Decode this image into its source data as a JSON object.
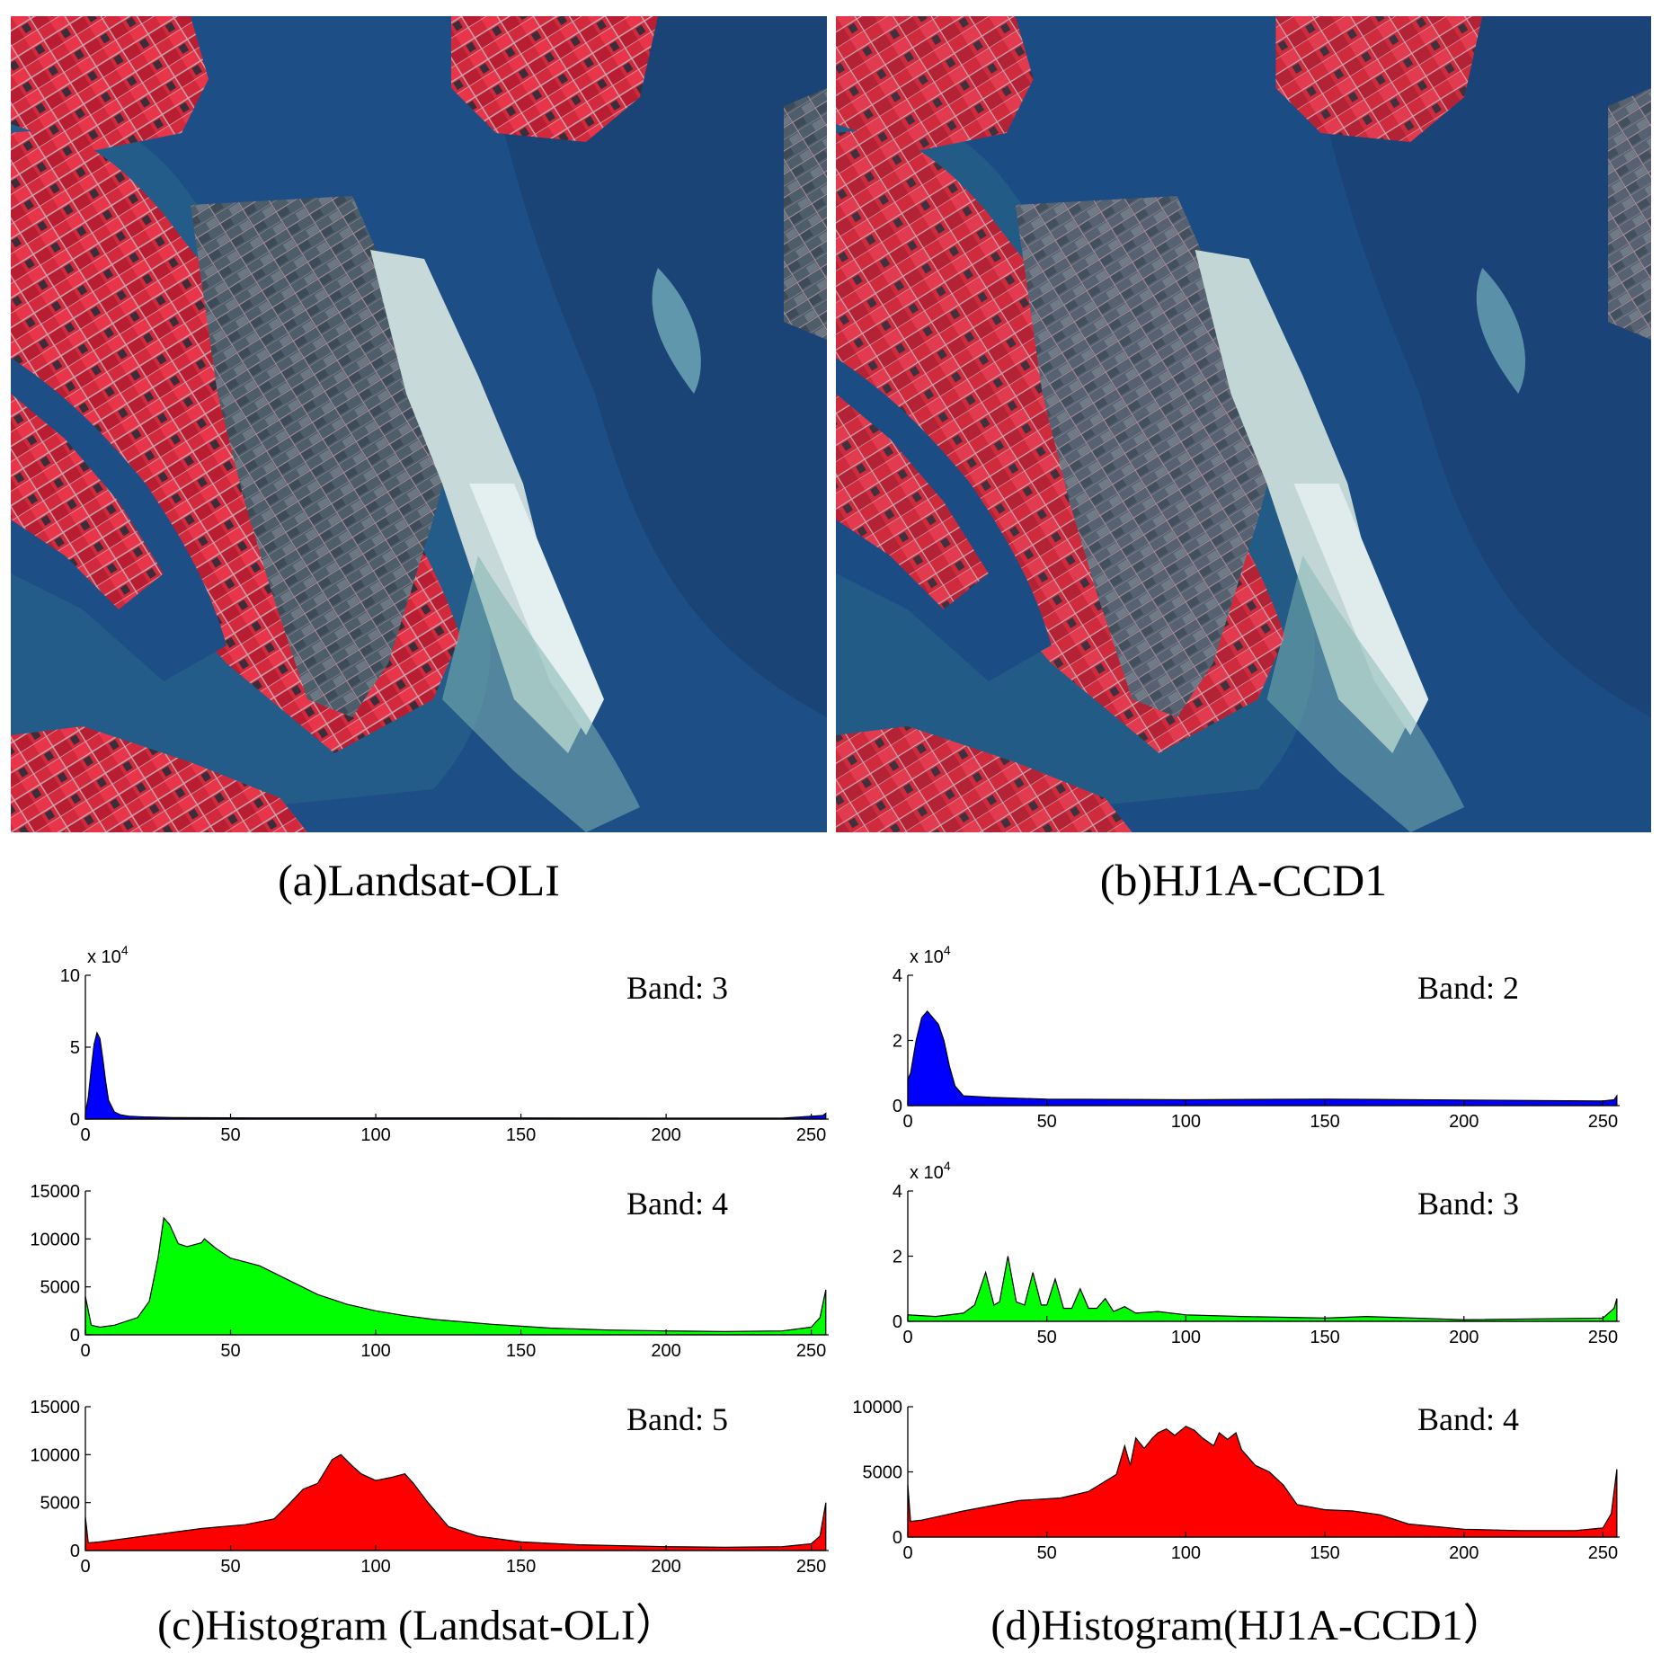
{
  "colors": {
    "band_blue": "#0000ff",
    "band_green": "#00ff00",
    "band_red": "#ff0000",
    "water": "#1d4f86",
    "land": "#d9283b"
  },
  "images": {
    "left_caption": "(a)Landsat-OLI",
    "right_caption": "(b)HJ1A-CCD1"
  },
  "histogram_captions": {
    "left": "(c)Histogram (Landsat-OLI）",
    "right": "(d)Histogram(HJ1A-CCD1）"
  },
  "chart_data": [
    {
      "type": "area",
      "panel": "c",
      "row": 0,
      "band_label": "Band: 3",
      "scale_label": "x 10",
      "scale_exp": "4",
      "color": "#0000ff",
      "xlim": [
        0,
        256
      ],
      "ylim": [
        0,
        10
      ],
      "xticks": [
        0,
        50,
        100,
        150,
        200,
        250
      ],
      "yticks": [
        0,
        5,
        10
      ],
      "x": [
        0,
        1,
        2,
        3,
        4,
        5,
        6,
        7,
        8,
        10,
        12,
        15,
        20,
        30,
        60,
        100,
        150,
        200,
        240,
        254,
        255
      ],
      "y": [
        0.4,
        1.5,
        3.5,
        5.2,
        6.0,
        5.6,
        4.2,
        2.6,
        1.3,
        0.5,
        0.3,
        0.2,
        0.15,
        0.1,
        0.08,
        0.08,
        0.08,
        0.06,
        0.06,
        0.25,
        0.4
      ]
    },
    {
      "type": "area",
      "panel": "c",
      "row": 1,
      "band_label": "Band: 4",
      "scale_label": "",
      "scale_exp": "",
      "color": "#00ff00",
      "xlim": [
        0,
        256
      ],
      "ylim": [
        0,
        15000
      ],
      "xticks": [
        0,
        50,
        100,
        150,
        200,
        250
      ],
      "yticks": [
        0,
        5000,
        10000,
        15000
      ],
      "x": [
        0,
        2,
        5,
        10,
        18,
        22,
        25,
        27,
        29,
        32,
        35,
        40,
        41,
        45,
        50,
        55,
        60,
        70,
        80,
        90,
        100,
        110,
        120,
        140,
        150,
        160,
        180,
        200,
        220,
        240,
        250,
        253,
        255
      ],
      "y": [
        4000,
        1000,
        800,
        1000,
        1800,
        3500,
        8000,
        12200,
        11500,
        9500,
        9200,
        9600,
        10000,
        9000,
        8000,
        7600,
        7200,
        5700,
        4200,
        3200,
        2500,
        2000,
        1600,
        1100,
        900,
        700,
        500,
        400,
        350,
        400,
        800,
        1800,
        4700
      ]
    },
    {
      "type": "area",
      "panel": "c",
      "row": 2,
      "band_label": "Band: 5",
      "scale_label": "",
      "scale_exp": "",
      "color": "#ff0000",
      "xlim": [
        0,
        256
      ],
      "ylim": [
        0,
        15000
      ],
      "xticks": [
        0,
        50,
        100,
        150,
        200,
        250
      ],
      "yticks": [
        0,
        5000,
        10000,
        15000
      ],
      "x": [
        0,
        1,
        5,
        20,
        40,
        55,
        65,
        70,
        75,
        80,
        85,
        88,
        92,
        95,
        100,
        105,
        110,
        113,
        118,
        125,
        135,
        150,
        170,
        200,
        220,
        240,
        250,
        253,
        255
      ],
      "y": [
        3500,
        800,
        900,
        1500,
        2300,
        2700,
        3300,
        4800,
        6400,
        7000,
        9500,
        10000,
        8800,
        8000,
        7300,
        7600,
        8000,
        7000,
        5000,
        2500,
        1500,
        900,
        600,
        400,
        350,
        400,
        700,
        1500,
        5000
      ]
    },
    {
      "type": "area",
      "panel": "d",
      "row": 0,
      "band_label": "Band: 2",
      "scale_label": "x 10",
      "scale_exp": "4",
      "color": "#0000ff",
      "xlim": [
        0,
        256
      ],
      "ylim": [
        0,
        4
      ],
      "xticks": [
        0,
        50,
        100,
        150,
        200,
        250
      ],
      "yticks": [
        0,
        2,
        4
      ],
      "x": [
        0,
        1,
        3,
        5,
        7,
        9,
        11,
        13,
        15,
        17,
        20,
        30,
        50,
        100,
        150,
        200,
        250,
        254,
        255
      ],
      "y": [
        0.8,
        1.0,
        2.0,
        2.7,
        2.9,
        2.7,
        2.5,
        2.0,
        1.2,
        0.6,
        0.3,
        0.25,
        0.2,
        0.18,
        0.2,
        0.17,
        0.14,
        0.18,
        0.3
      ]
    },
    {
      "type": "area",
      "panel": "d",
      "row": 1,
      "band_label": "Band: 3",
      "scale_label": "x 10",
      "scale_exp": "4",
      "color": "#00ff00",
      "xlim": [
        0,
        256
      ],
      "ylim": [
        0,
        4
      ],
      "xticks": [
        0,
        50,
        100,
        150,
        200,
        250
      ],
      "yticks": [
        0,
        2,
        4
      ],
      "x": [
        0,
        10,
        20,
        24,
        28,
        31,
        33,
        36,
        39,
        42,
        45,
        48,
        50,
        53,
        56,
        59,
        62,
        65,
        68,
        71,
        74,
        78,
        82,
        90,
        100,
        120,
        150,
        165,
        200,
        250,
        254,
        255
      ],
      "y": [
        0.2,
        0.15,
        0.25,
        0.5,
        1.5,
        0.5,
        0.6,
        2.0,
        0.6,
        0.5,
        1.5,
        0.5,
        0.5,
        1.3,
        0.4,
        0.4,
        1.0,
        0.4,
        0.4,
        0.7,
        0.3,
        0.45,
        0.25,
        0.3,
        0.2,
        0.15,
        0.1,
        0.15,
        0.05,
        0.1,
        0.4,
        0.7
      ]
    },
    {
      "type": "area",
      "panel": "d",
      "row": 2,
      "band_label": "Band: 4",
      "scale_label": "",
      "scale_exp": "",
      "color": "#ff0000",
      "xlim": [
        0,
        256
      ],
      "ylim": [
        0,
        10000
      ],
      "xticks": [
        0,
        50,
        100,
        150,
        200,
        250
      ],
      "yticks": [
        0,
        5000,
        10000
      ],
      "x": [
        0,
        1,
        5,
        20,
        40,
        55,
        65,
        75,
        78,
        80,
        82,
        85,
        88,
        90,
        93,
        96,
        100,
        103,
        106,
        110,
        112,
        115,
        118,
        120,
        125,
        130,
        135,
        140,
        150,
        160,
        170,
        180,
        200,
        220,
        240,
        250,
        253,
        255
      ],
      "y": [
        4000,
        1200,
        1300,
        2000,
        2800,
        3000,
        3500,
        4800,
        7000,
        5500,
        7600,
        6800,
        7600,
        8000,
        8300,
        7800,
        8500,
        8200,
        7600,
        7000,
        8000,
        7500,
        8000,
        6700,
        5500,
        5000,
        4000,
        2500,
        2100,
        2000,
        1700,
        1000,
        600,
        500,
        500,
        700,
        1800,
        5200
      ]
    }
  ]
}
